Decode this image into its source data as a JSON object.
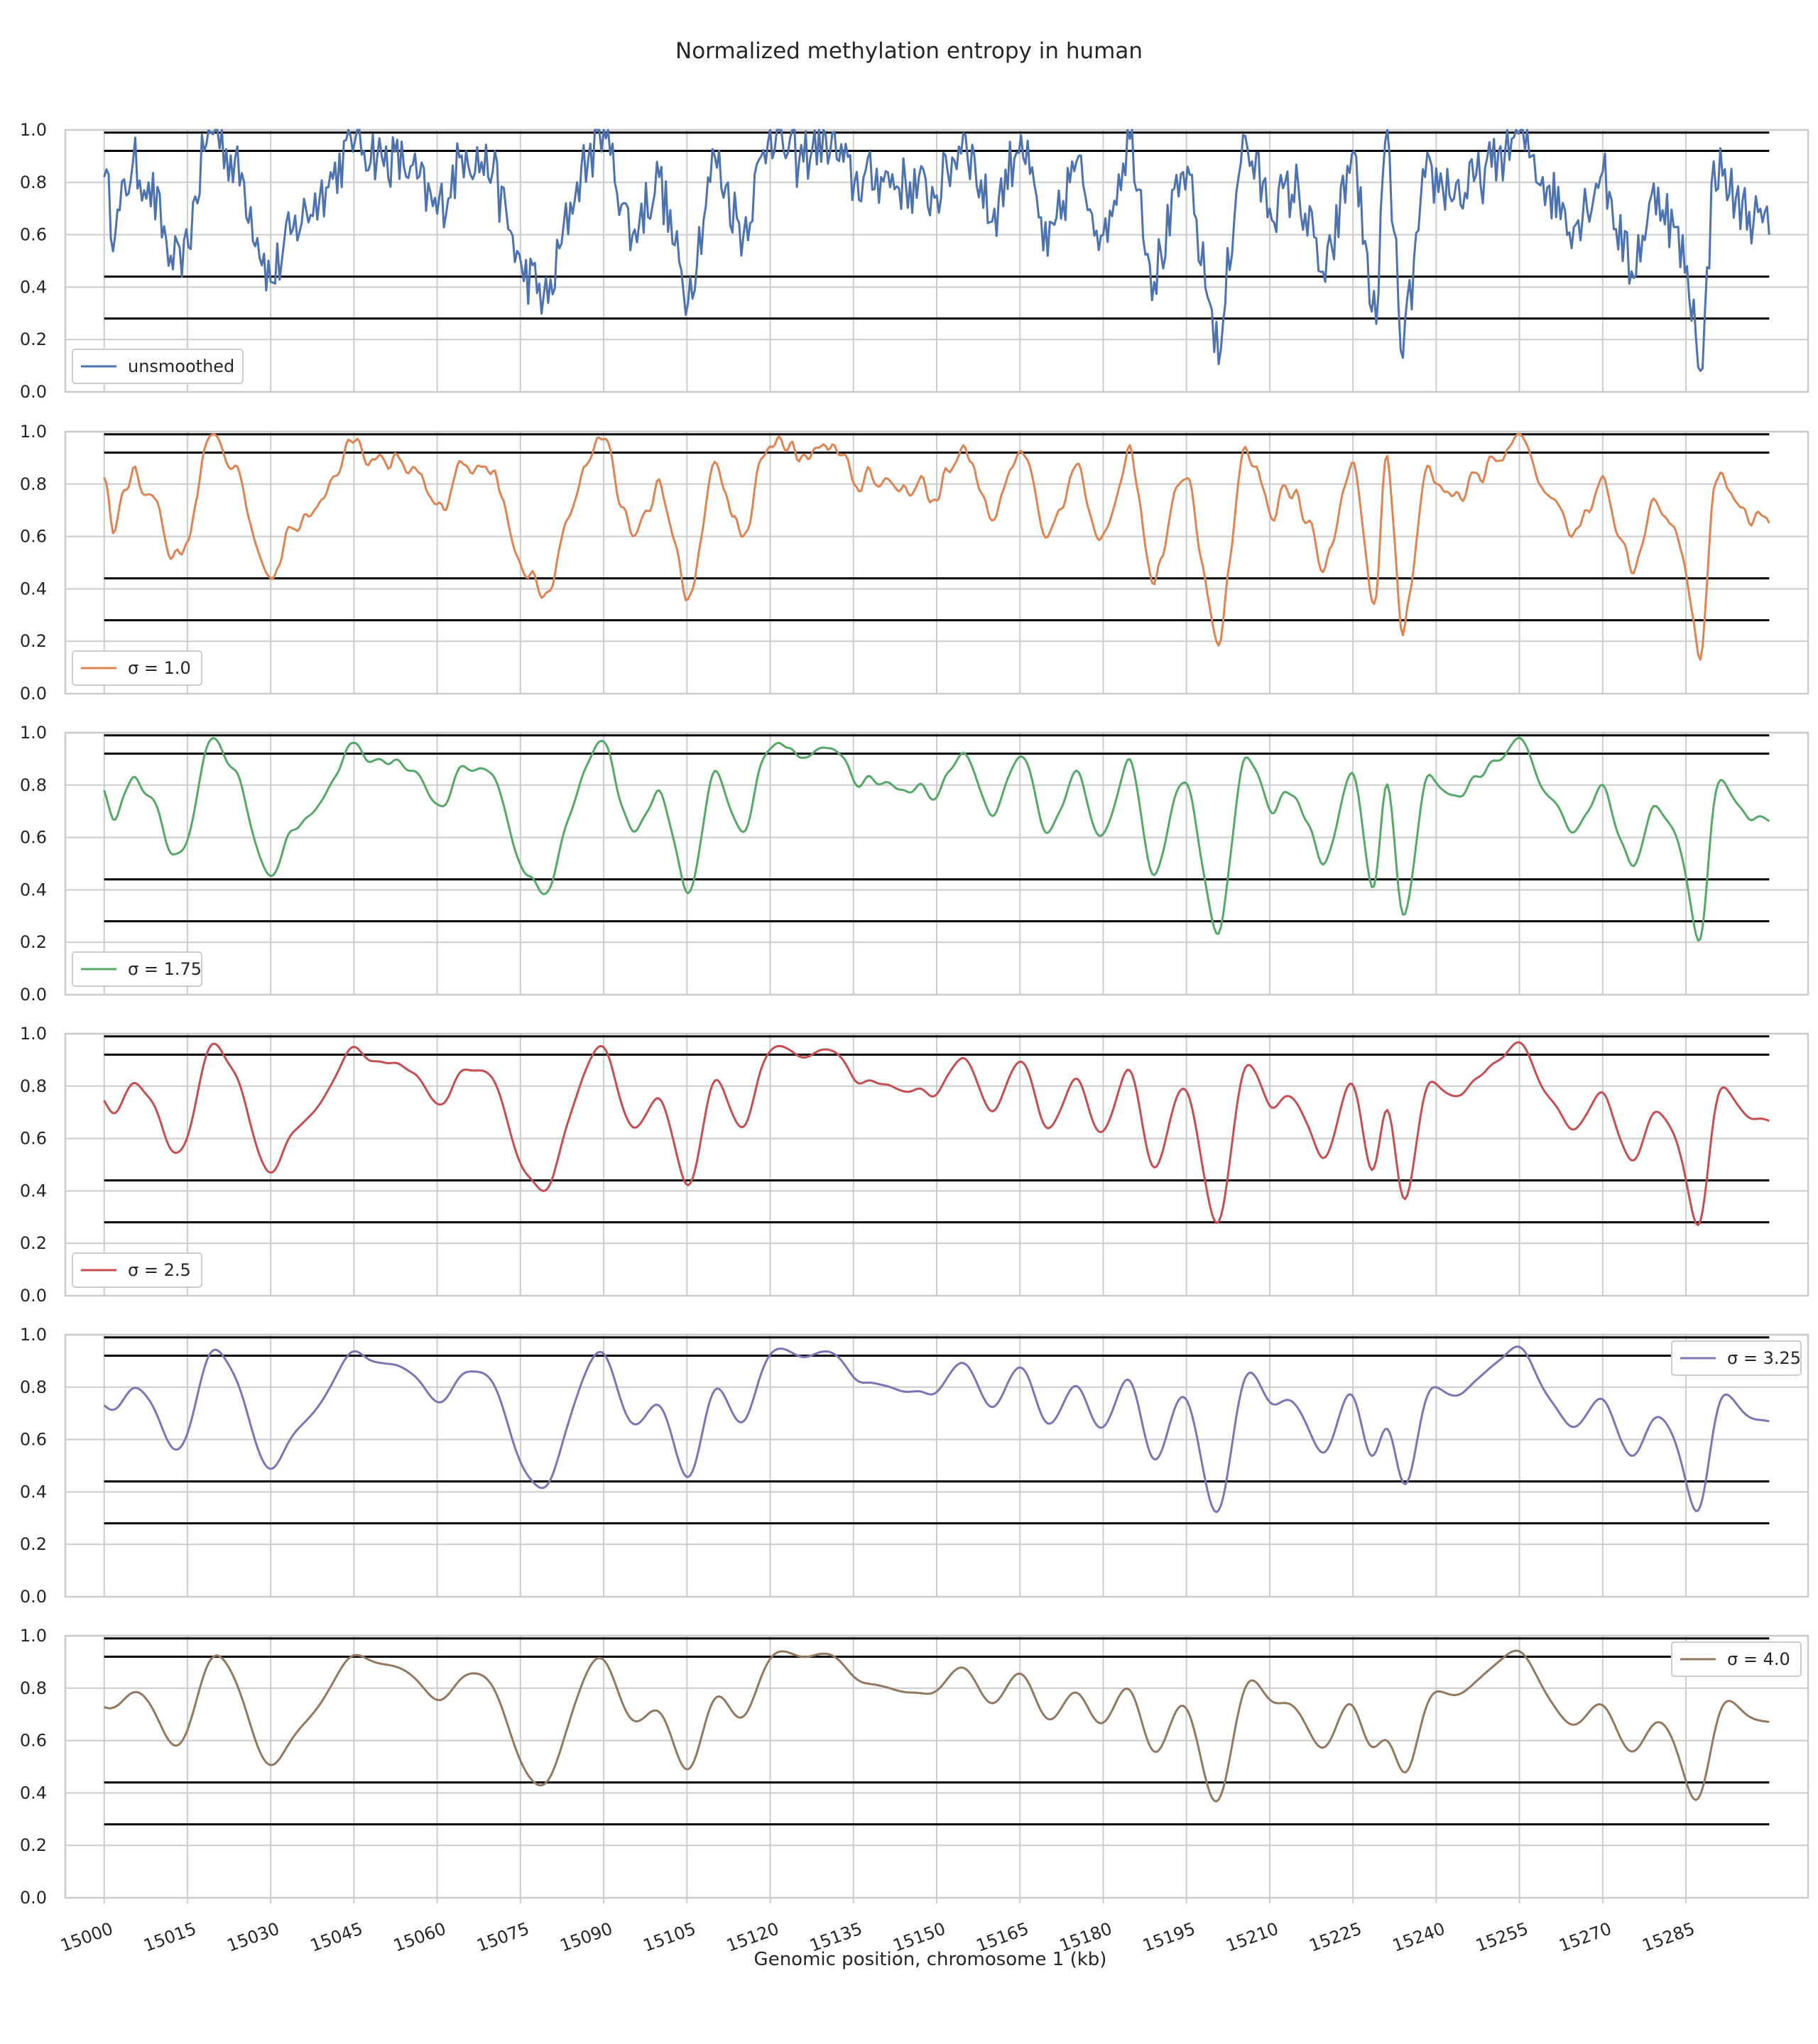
{
  "chart_data": {
    "type": "line",
    "title": "Normalized methylation entropy in human",
    "xlabel": "Genomic position, chromosome 1 (kb)",
    "ylabel": "",
    "xlim": [
      14993,
      15307
    ],
    "ylim": [
      0,
      1.0
    ],
    "x_ticks": [
      "15000",
      "15015",
      "15030",
      "15045",
      "15060",
      "15075",
      "15090",
      "15105",
      "15120",
      "15135",
      "15150",
      "15165",
      "15180",
      "15195",
      "15210",
      "15225",
      "15240",
      "15255",
      "15270",
      "15285"
    ],
    "y_ticks": [
      "0.0",
      "0.2",
      "0.4",
      "0.6",
      "0.8",
      "1.0"
    ],
    "grid": true,
    "reference_lines": [
      0.28,
      0.44,
      0.92,
      0.99
    ],
    "reference_line_color": "#000000",
    "series": [
      {
        "name": "unsmoothed",
        "color": "#4c72b0",
        "legend_loc": "lower-left",
        "sigma": 0
      },
      {
        "name": "σ = 1.0",
        "color": "#dd8452",
        "legend_loc": "lower-left",
        "sigma": 1.0
      },
      {
        "name": "σ = 1.75",
        "color": "#55a868",
        "legend_loc": "lower-left",
        "sigma": 1.75
      },
      {
        "name": "σ = 2.5",
        "color": "#c44e52",
        "legend_loc": "lower-left",
        "sigma": 2.5
      },
      {
        "name": "σ = 3.25",
        "color": "#8172b3",
        "legend_loc": "upper-right",
        "sigma": 3.25
      },
      {
        "name": "σ = 4.0",
        "color": "#937860",
        "legend_loc": "upper-right",
        "sigma": 4.0
      }
    ],
    "key_points": [
      {
        "x": 15000,
        "y": 0.82
      },
      {
        "x": 15002,
        "y": 0.6
      },
      {
        "x": 15005,
        "y": 0.88
      },
      {
        "x": 15008,
        "y": 0.8
      },
      {
        "x": 15012,
        "y": 0.52
      },
      {
        "x": 15014,
        "y": 0.44
      },
      {
        "x": 15018,
        "y": 0.92
      },
      {
        "x": 15020,
        "y": 1.0
      },
      {
        "x": 15025,
        "y": 0.8
      },
      {
        "x": 15030,
        "y": 0.42
      },
      {
        "x": 15034,
        "y": 0.62
      },
      {
        "x": 15040,
        "y": 0.78
      },
      {
        "x": 15045,
        "y": 0.96
      },
      {
        "x": 15050,
        "y": 0.9
      },
      {
        "x": 15055,
        "y": 0.86
      },
      {
        "x": 15060,
        "y": 0.68
      },
      {
        "x": 15065,
        "y": 0.92
      },
      {
        "x": 15070,
        "y": 0.84
      },
      {
        "x": 15075,
        "y": 0.48
      },
      {
        "x": 15080,
        "y": 0.34
      },
      {
        "x": 15085,
        "y": 0.8
      },
      {
        "x": 15090,
        "y": 1.0
      },
      {
        "x": 15095,
        "y": 0.6
      },
      {
        "x": 15100,
        "y": 0.82
      },
      {
        "x": 15105,
        "y": 0.34
      },
      {
        "x": 15110,
        "y": 0.9
      },
      {
        "x": 15115,
        "y": 0.6
      },
      {
        "x": 15120,
        "y": 1.0
      },
      {
        "x": 15125,
        "y": 0.88
      },
      {
        "x": 15130,
        "y": 0.98
      },
      {
        "x": 15135,
        "y": 0.8
      },
      {
        "x": 15140,
        "y": 0.82
      },
      {
        "x": 15150,
        "y": 0.75
      },
      {
        "x": 15155,
        "y": 0.98
      },
      {
        "x": 15160,
        "y": 0.65
      },
      {
        "x": 15165,
        "y": 0.98
      },
      {
        "x": 15170,
        "y": 0.52
      },
      {
        "x": 15175,
        "y": 0.88
      },
      {
        "x": 15180,
        "y": 0.6
      },
      {
        "x": 15185,
        "y": 1.0
      },
      {
        "x": 15189,
        "y": 0.42
      },
      {
        "x": 15195,
        "y": 0.86
      },
      {
        "x": 15199,
        "y": 0.34
      },
      {
        "x": 15201,
        "y": 0.16
      },
      {
        "x": 15205,
        "y": 0.98
      },
      {
        "x": 15210,
        "y": 0.7
      },
      {
        "x": 15215,
        "y": 0.78
      },
      {
        "x": 15220,
        "y": 0.42
      },
      {
        "x": 15225,
        "y": 0.92
      },
      {
        "x": 15229,
        "y": 0.26
      },
      {
        "x": 15231,
        "y": 1.0
      },
      {
        "x": 15234,
        "y": 0.13
      },
      {
        "x": 15238,
        "y": 0.82
      },
      {
        "x": 15245,
        "y": 0.76
      },
      {
        "x": 15250,
        "y": 0.86
      },
      {
        "x": 15255,
        "y": 1.0
      },
      {
        "x": 15260,
        "y": 0.78
      },
      {
        "x": 15265,
        "y": 0.64
      },
      {
        "x": 15270,
        "y": 0.84
      },
      {
        "x": 15275,
        "y": 0.46
      },
      {
        "x": 15280,
        "y": 0.78
      },
      {
        "x": 15285,
        "y": 0.48
      },
      {
        "x": 15288,
        "y": 0.09
      },
      {
        "x": 15290,
        "y": 0.88
      },
      {
        "x": 15294,
        "y": 0.74
      },
      {
        "x": 15300,
        "y": 0.6
      }
    ]
  }
}
